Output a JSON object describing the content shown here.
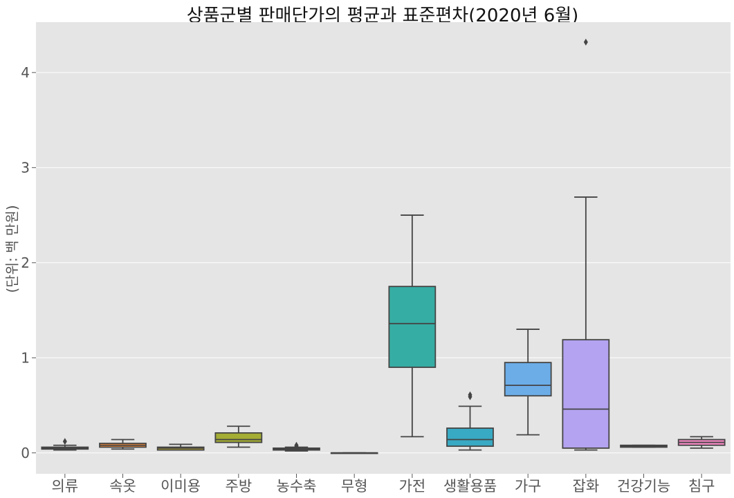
{
  "chart_data": {
    "type": "box",
    "title": "상품군별 판매단가의 평균과 표준편차(2020년 6월)",
    "xlabel": "",
    "ylabel": "(단위: 백 만원)",
    "ylim": [
      -0.22,
      4.53
    ],
    "yticks": [
      0,
      1,
      2,
      3,
      4
    ],
    "grid": true,
    "background": "#e5e5e5",
    "categories": [
      "의류",
      "속옷",
      "이미용",
      "주방",
      "농수축",
      "무형",
      "가전",
      "생활용품",
      "가구",
      "잡화",
      "건강기능",
      "침구"
    ],
    "boxes": [
      {
        "category": "의류",
        "whisker_low": 0.03,
        "q1": 0.04,
        "median": 0.05,
        "q3": 0.06,
        "whisker_high": 0.08,
        "outliers": [
          0.12
        ],
        "color": "#e1812c"
      },
      {
        "category": "속옷",
        "whisker_low": 0.04,
        "q1": 0.06,
        "median": 0.08,
        "q3": 0.1,
        "whisker_high": 0.14,
        "outliers": [],
        "color": "#f08a3a"
      },
      {
        "category": "이미용",
        "whisker_low": 0.03,
        "q1": 0.03,
        "median": 0.05,
        "q3": 0.06,
        "whisker_high": 0.09,
        "outliers": [],
        "color": "#b8a135"
      },
      {
        "category": "주방",
        "whisker_low": 0.06,
        "q1": 0.11,
        "median": 0.14,
        "q3": 0.21,
        "whisker_high": 0.28,
        "outliers": [],
        "color": "#a4ad34"
      },
      {
        "category": "농수축",
        "whisker_low": 0.02,
        "q1": 0.03,
        "median": 0.04,
        "q3": 0.05,
        "whisker_high": 0.06,
        "outliers": [
          0.07,
          0.08
        ],
        "color": "#5fb34a"
      },
      {
        "category": "무형",
        "whisker_low": 0.0,
        "q1": 0.0,
        "median": 0.0,
        "q3": 0.0,
        "whisker_high": 0.0,
        "outliers": [],
        "color": "#36ad88"
      },
      {
        "category": "가전",
        "whisker_low": 0.17,
        "q1": 0.9,
        "median": 1.36,
        "q3": 1.75,
        "whisker_high": 2.5,
        "outliers": [],
        "color": "#36ada4"
      },
      {
        "category": "생활용품",
        "whisker_low": 0.03,
        "q1": 0.07,
        "median": 0.14,
        "q3": 0.26,
        "whisker_high": 0.49,
        "outliers": [
          0.59,
          0.61
        ],
        "color": "#38aac4"
      },
      {
        "category": "가구",
        "whisker_low": 0.19,
        "q1": 0.6,
        "median": 0.71,
        "q3": 0.95,
        "whisker_high": 1.3,
        "outliers": [],
        "color": "#6cade8"
      },
      {
        "category": "잡화",
        "whisker_low": 0.03,
        "q1": 0.05,
        "median": 0.46,
        "q3": 1.19,
        "whisker_high": 2.69,
        "outliers": [
          4.32
        ],
        "color": "#b4a3f0"
      },
      {
        "category": "건강기능",
        "whisker_low": 0.06,
        "q1": 0.06,
        "median": 0.07,
        "q3": 0.08,
        "whisker_high": 0.08,
        "outliers": [],
        "color": "#e57be4"
      },
      {
        "category": "침구",
        "whisker_low": 0.05,
        "q1": 0.08,
        "median": 0.11,
        "q3": 0.14,
        "whisker_high": 0.17,
        "outliers": [],
        "color": "#f387c2"
      }
    ]
  }
}
